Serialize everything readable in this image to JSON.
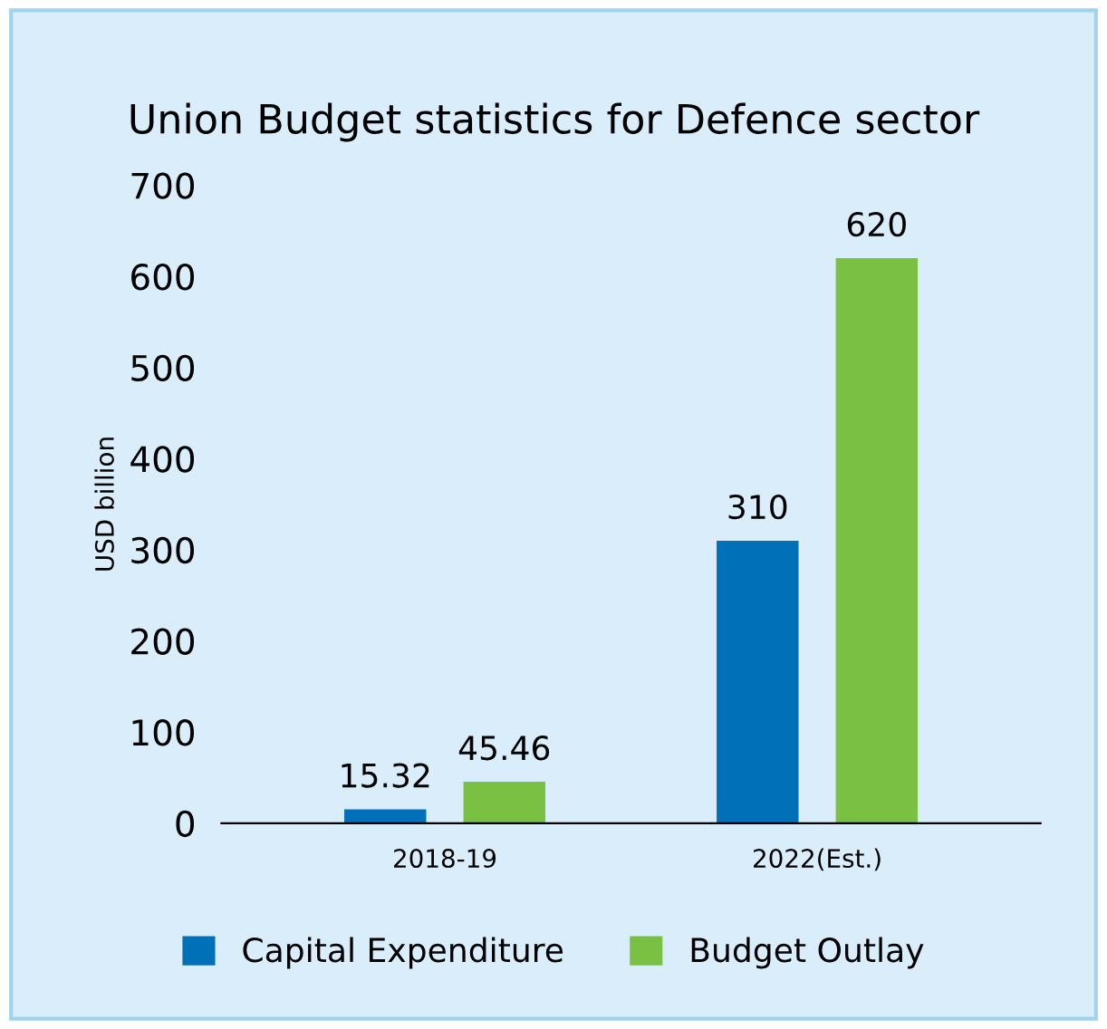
{
  "chart_data": {
    "type": "bar",
    "title": "Union Budget statistics for Defence sector",
    "ylabel": "USD billion",
    "categories": [
      "2018-19",
      "2022(Est.)"
    ],
    "series": [
      {
        "name": "Capital Expenditure",
        "color": "#0070b8",
        "values": [
          15.32,
          310
        ]
      },
      {
        "name": "Budget Outlay",
        "color": "#7ac143",
        "values": [
          45.46,
          620
        ]
      }
    ],
    "ylim": [
      0,
      700
    ],
    "yticks": [
      0,
      100,
      200,
      300,
      400,
      500,
      600,
      700
    ],
    "data_labels": true,
    "legend": "bottom",
    "grid": false
  }
}
